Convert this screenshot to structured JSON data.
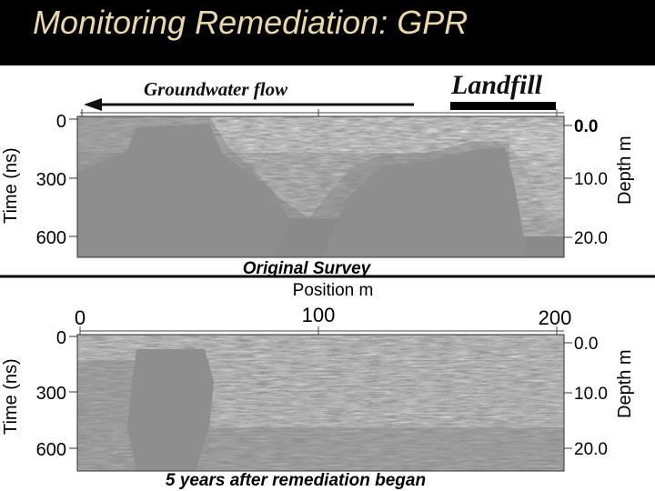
{
  "slide": {
    "title": "Monitoring Remediation: GPR",
    "colors": {
      "title_bar": "#000000",
      "title_text": "#e8d9a6",
      "radargram_background": "#8a8a8a"
    }
  },
  "top_panel": {
    "flow_label": "Groundwater flow",
    "landfill_label": "Landfill",
    "time_axis_label": "Time (ns)",
    "depth_axis_label": "Depth m",
    "time_ticks": [
      "0",
      "300",
      "600"
    ],
    "depth_ticks": [
      "0.0",
      "10.0",
      "20.0"
    ],
    "caption": "Original Survey"
  },
  "position_axis": {
    "label": "Position m",
    "ticks": [
      "0",
      "100",
      "200"
    ]
  },
  "bottom_panel": {
    "time_axis_label": "Time (ns)",
    "depth_axis_label": "Depth m",
    "time_ticks": [
      "0",
      "300",
      "600"
    ],
    "depth_ticks": [
      "0.0",
      "10.0",
      "20.0"
    ],
    "caption": "5 years after remediation began"
  }
}
